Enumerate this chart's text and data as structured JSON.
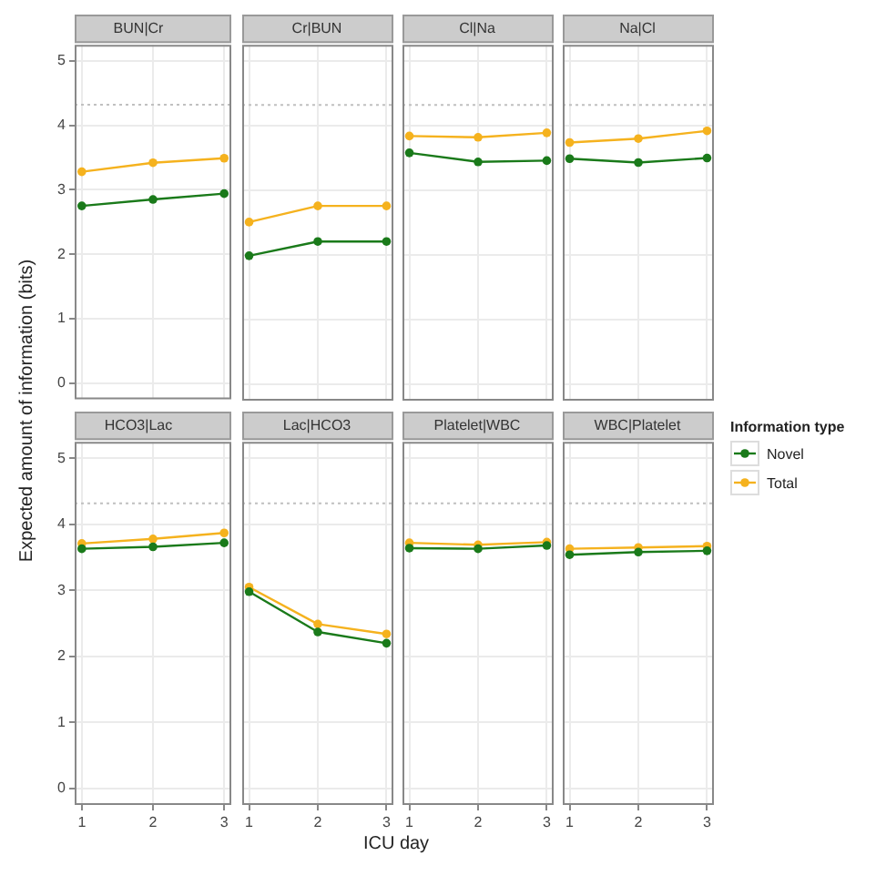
{
  "chart_data": [
    {
      "type": "line",
      "title": "BUN|Cr",
      "ylabel": "Expected amount of information (bits)",
      "legend": "right",
      "legend_title": "Information type",
      "x": [
        1,
        2,
        3
      ],
      "xlim": [
        0.9,
        3.1
      ],
      "xticks": [
        1,
        2,
        3
      ],
      "ylim": [
        -0.25,
        5.25
      ],
      "yticks": [
        0,
        1,
        2,
        3,
        4,
        5
      ],
      "grid": true,
      "marker": "circle",
      "line_style": "solid",
      "tick_labels": "y",
      "ref_lines": [
        {
          "axis": "y",
          "value": 4.32,
          "color": "#c0c0c0",
          "line_style": "dotted"
        }
      ],
      "series": [
        {
          "name": "Novel",
          "color": "#1a7a1a",
          "values": [
            2.75,
            2.85,
            2.94
          ]
        },
        {
          "name": "Total",
          "color": "#f5b21e",
          "values": [
            3.28,
            3.42,
            3.49
          ]
        }
      ]
    },
    {
      "type": "line",
      "title": "Cr|BUN",
      "x": [
        1,
        2,
        3
      ],
      "xlim": [
        0.9,
        3.1
      ],
      "xticks": [
        1,
        2,
        3
      ],
      "ylim": [
        -0.25,
        5.25
      ],
      "yticks": [
        0,
        1,
        2,
        3,
        4,
        5
      ],
      "grid": true,
      "marker": "circle",
      "line_style": "solid",
      "tick_labels": false,
      "ref_lines": [
        {
          "axis": "y",
          "value": 4.32,
          "color": "#c0c0c0",
          "line_style": "dotted"
        }
      ],
      "series": [
        {
          "color": "#1a7a1a",
          "values": [
            1.99,
            2.21,
            2.21
          ]
        },
        {
          "color": "#f5b21e",
          "values": [
            2.51,
            2.76,
            2.76
          ]
        }
      ]
    },
    {
      "type": "line",
      "title": "Cl|Na",
      "x": [
        1,
        2,
        3
      ],
      "xlim": [
        0.9,
        3.1
      ],
      "xticks": [
        1,
        2,
        3
      ],
      "ylim": [
        -0.25,
        5.25
      ],
      "yticks": [
        0,
        1,
        2,
        3,
        4,
        5
      ],
      "grid": true,
      "marker": "circle",
      "line_style": "solid",
      "tick_labels": false,
      "ref_lines": [
        {
          "axis": "y",
          "value": 4.32,
          "color": "#c0c0c0",
          "line_style": "dotted"
        }
      ],
      "series": [
        {
          "color": "#1a7a1a",
          "values": [
            3.58,
            3.44,
            3.46
          ]
        },
        {
          "color": "#f5b21e",
          "values": [
            3.84,
            3.82,
            3.89
          ]
        }
      ]
    },
    {
      "type": "line",
      "title": "Na|Cl",
      "x": [
        1,
        2,
        3
      ],
      "xlim": [
        0.9,
        3.1
      ],
      "xticks": [
        1,
        2,
        3
      ],
      "ylim": [
        -0.25,
        5.25
      ],
      "yticks": [
        0,
        1,
        2,
        3,
        4,
        5
      ],
      "grid": true,
      "marker": "circle",
      "line_style": "solid",
      "tick_labels": false,
      "ref_lines": [
        {
          "axis": "y",
          "value": 4.32,
          "color": "#c0c0c0",
          "line_style": "dotted"
        }
      ],
      "series": [
        {
          "color": "#1a7a1a",
          "values": [
            3.49,
            3.43,
            3.5
          ]
        },
        {
          "color": "#f5b21e",
          "values": [
            3.74,
            3.8,
            3.92
          ]
        }
      ]
    },
    {
      "type": "line",
      "title": "HCO3|Lac",
      "x": [
        1,
        2,
        3
      ],
      "xlim": [
        0.9,
        3.1
      ],
      "xticks": [
        1,
        2,
        3
      ],
      "ylim": [
        -0.25,
        5.25
      ],
      "yticks": [
        0,
        1,
        2,
        3,
        4,
        5
      ],
      "grid": true,
      "marker": "circle",
      "line_style": "solid",
      "ref_lines": [
        {
          "axis": "y",
          "value": 4.32,
          "color": "#c0c0c0",
          "line_style": "dotted"
        }
      ],
      "series": [
        {
          "color": "#1a7a1a",
          "values": [
            3.63,
            3.66,
            3.72
          ]
        },
        {
          "color": "#f5b21e",
          "values": [
            3.71,
            3.78,
            3.87
          ]
        }
      ]
    },
    {
      "type": "line",
      "title": "Lac|HCO3",
      "xlabel": "ICU day",
      "x": [
        1,
        2,
        3
      ],
      "xlim": [
        0.9,
        3.1
      ],
      "xticks": [
        1,
        2,
        3
      ],
      "ylim": [
        -0.25,
        5.25
      ],
      "yticks": [
        0,
        1,
        2,
        3,
        4,
        5
      ],
      "grid": true,
      "marker": "circle",
      "line_style": "solid",
      "tick_labels": "x",
      "ref_lines": [
        {
          "axis": "y",
          "value": 4.32,
          "color": "#c0c0c0",
          "line_style": "dotted"
        }
      ],
      "series": [
        {
          "color": "#1a7a1a",
          "values": [
            2.98,
            2.37,
            2.2
          ]
        },
        {
          "color": "#f5b21e",
          "values": [
            3.05,
            2.49,
            2.34
          ]
        }
      ]
    },
    {
      "type": "line",
      "title": "Platelet|WBC",
      "x": [
        1,
        2,
        3
      ],
      "xlim": [
        0.9,
        3.1
      ],
      "xticks": [
        1,
        2,
        3
      ],
      "ylim": [
        -0.25,
        5.25
      ],
      "yticks": [
        0,
        1,
        2,
        3,
        4,
        5
      ],
      "grid": true,
      "marker": "circle",
      "line_style": "solid",
      "tick_labels": "x",
      "ref_lines": [
        {
          "axis": "y",
          "value": 4.32,
          "color": "#c0c0c0",
          "line_style": "dotted"
        }
      ],
      "series": [
        {
          "color": "#1a7a1a",
          "values": [
            3.64,
            3.63,
            3.68
          ]
        },
        {
          "color": "#f5b21e",
          "values": [
            3.72,
            3.69,
            3.73
          ]
        }
      ]
    },
    {
      "type": "line",
      "title": "WBC|Platelet",
      "x": [
        1,
        2,
        3
      ],
      "xlim": [
        0.9,
        3.1
      ],
      "xticks": [
        1,
        2,
        3
      ],
      "ylim": [
        -0.25,
        5.25
      ],
      "yticks": [
        0,
        1,
        2,
        3,
        4,
        5
      ],
      "grid": true,
      "marker": "circle",
      "line_style": "solid",
      "tick_labels": "x",
      "ref_lines": [
        {
          "axis": "y",
          "value": 4.32,
          "color": "#c0c0c0",
          "line_style": "dotted"
        }
      ],
      "series": [
        {
          "color": "#1a7a1a",
          "values": [
            3.54,
            3.58,
            3.6
          ]
        },
        {
          "color": "#f5b21e",
          "values": [
            3.63,
            3.65,
            3.67
          ]
        }
      ]
    }
  ]
}
